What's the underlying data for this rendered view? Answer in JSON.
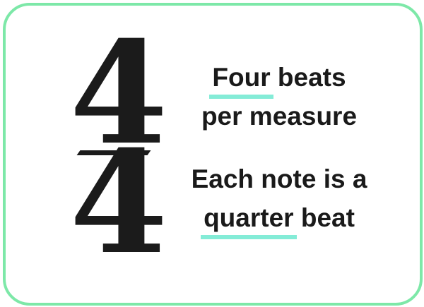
{
  "time_signature": {
    "top_number": "4",
    "bottom_number": "4"
  },
  "captions": {
    "top": {
      "highlighted_word": "Four",
      "line1_rest": " beats",
      "line2": "per measure"
    },
    "bottom": {
      "line1": "Each note is a",
      "highlighted_word": "quarter",
      "line2_rest": " beat"
    }
  },
  "colors": {
    "border": "#7de8a8",
    "highlight": "#84ecd7",
    "text": "#1a1a1a"
  }
}
